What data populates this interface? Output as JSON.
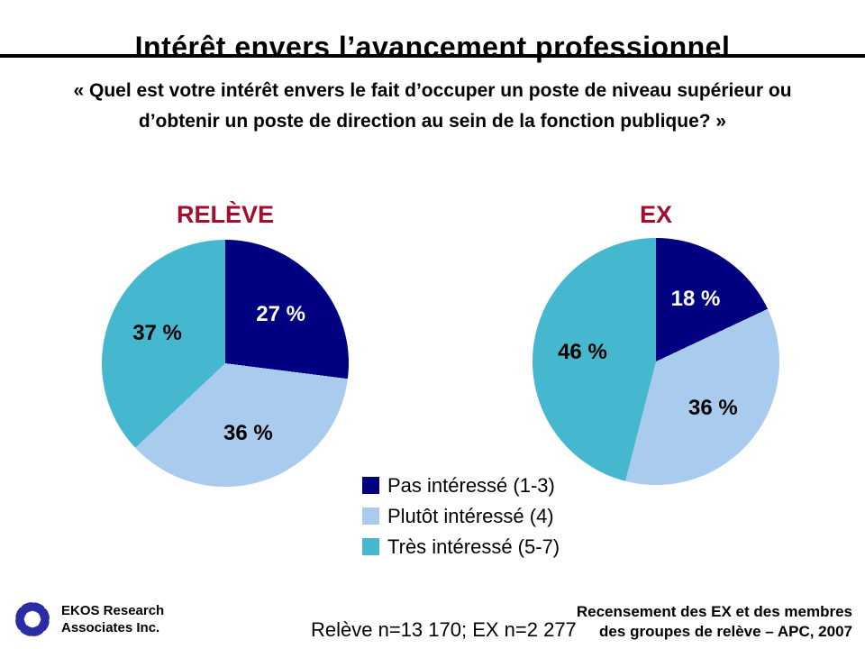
{
  "title": "Intérêt envers l’avancement professionnel",
  "subtitle": {
    "line1": "« Quel est votre intérêt envers le fait d’occuper un poste de niveau supérieur ou",
    "line2": "d’obtenir un poste de direction au sein de la fonction publique? »"
  },
  "colors": {
    "navy": "#000080",
    "light_blue": "#A8CBEE",
    "teal": "#45B7CE",
    "heading_red": "#A30D2E",
    "logo_blue": "#2B2BA6",
    "divider": "#000000"
  },
  "chart_data": [
    {
      "type": "pie",
      "title": "RELÈVE",
      "labels": [
        "Pas intéressé (1-3)",
        "Plutôt intéressé (4)",
        "Très intéressé (5-7)"
      ],
      "values": [
        27,
        36,
        37
      ],
      "value_labels": [
        "27 %",
        "36 %",
        "37 %"
      ],
      "slice_colors": [
        "#000080",
        "#A8CBEE",
        "#45B7CE"
      ],
      "label_colors": [
        "#FFFFFF",
        "#000000",
        "#000000"
      ],
      "start_angle_deg": 0,
      "direction": "clockwise"
    },
    {
      "type": "pie",
      "title": "EX",
      "labels": [
        "Pas intéressé (1-3)",
        "Plutôt intéressé (4)",
        "Très intéressé (5-7)"
      ],
      "values": [
        18,
        36,
        46
      ],
      "value_labels": [
        "18 %",
        "36 %",
        "46 %"
      ],
      "slice_colors": [
        "#000080",
        "#A8CBEE",
        "#45B7CE"
      ],
      "label_colors": [
        "#FFFFFF",
        "#000000",
        "#000000"
      ],
      "start_angle_deg": 0,
      "direction": "clockwise"
    }
  ],
  "legend": {
    "items": [
      {
        "label": "Pas intéressé (1-3)",
        "color": "#000080"
      },
      {
        "label": "Plutôt intéressé (4)",
        "color": "#A8CBEE"
      },
      {
        "label": "Très intéressé (5-7)",
        "color": "#45B7CE"
      }
    ]
  },
  "footer": {
    "logo_name": "ekos-swirl-logo",
    "logo_text_line1": "EKOS Research",
    "logo_text_line2": "Associates Inc.",
    "sample_note": "Relève n=13 170; EX n=2 277",
    "source_line1": "Recensement des EX et des membres",
    "source_line2": "des groupes de relève – APC, 2007"
  }
}
